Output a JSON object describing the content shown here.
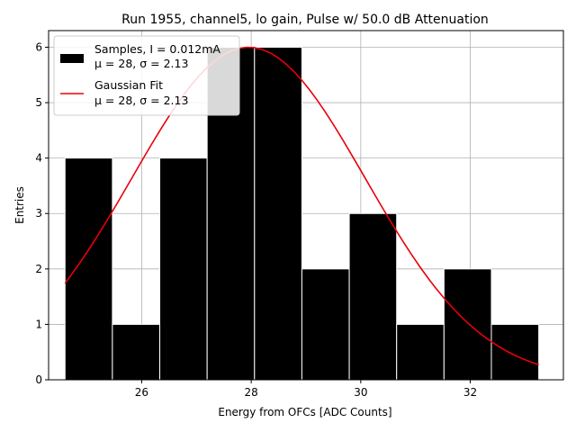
{
  "chart_data": {
    "type": "bar",
    "title": "Run 1955, channel5, lo gain, Pulse w/ 50.0 dB Attenuation",
    "xlabel": "Energy from OFCs [ADC Counts]",
    "ylabel": "Entries",
    "xlim": [
      24.3,
      33.7
    ],
    "ylim": [
      0,
      6.3
    ],
    "xticks": [
      26,
      28,
      30,
      32
    ],
    "yticks": [
      0,
      1,
      2,
      3,
      4,
      5,
      6
    ],
    "grid": true,
    "histogram": {
      "name": "Samples",
      "bin_edges": [
        24.6,
        25.465,
        26.33,
        27.195,
        28.06,
        28.925,
        29.79,
        30.655,
        31.52,
        32.385,
        33.25
      ],
      "counts": [
        4,
        1,
        4,
        6,
        6,
        2,
        3,
        1,
        2,
        1
      ],
      "color": "#000000"
    },
    "fit": {
      "name": "Gaussian Fit",
      "mu": 27.95,
      "sigma": 2.13,
      "amplitude": 6.0,
      "x_range": [
        24.6,
        33.25
      ],
      "color": "#e8000b"
    },
    "legend": {
      "position": "top-left",
      "entries": [
        {
          "line1": "Samples, I = 0.012mA",
          "line2": "μ = 28, σ = 2.13",
          "kind": "patch",
          "color": "#000000"
        },
        {
          "line1": "Gaussian Fit",
          "line2": "μ = 28, σ = 2.13",
          "kind": "line",
          "color": "#e8000b"
        }
      ]
    }
  }
}
